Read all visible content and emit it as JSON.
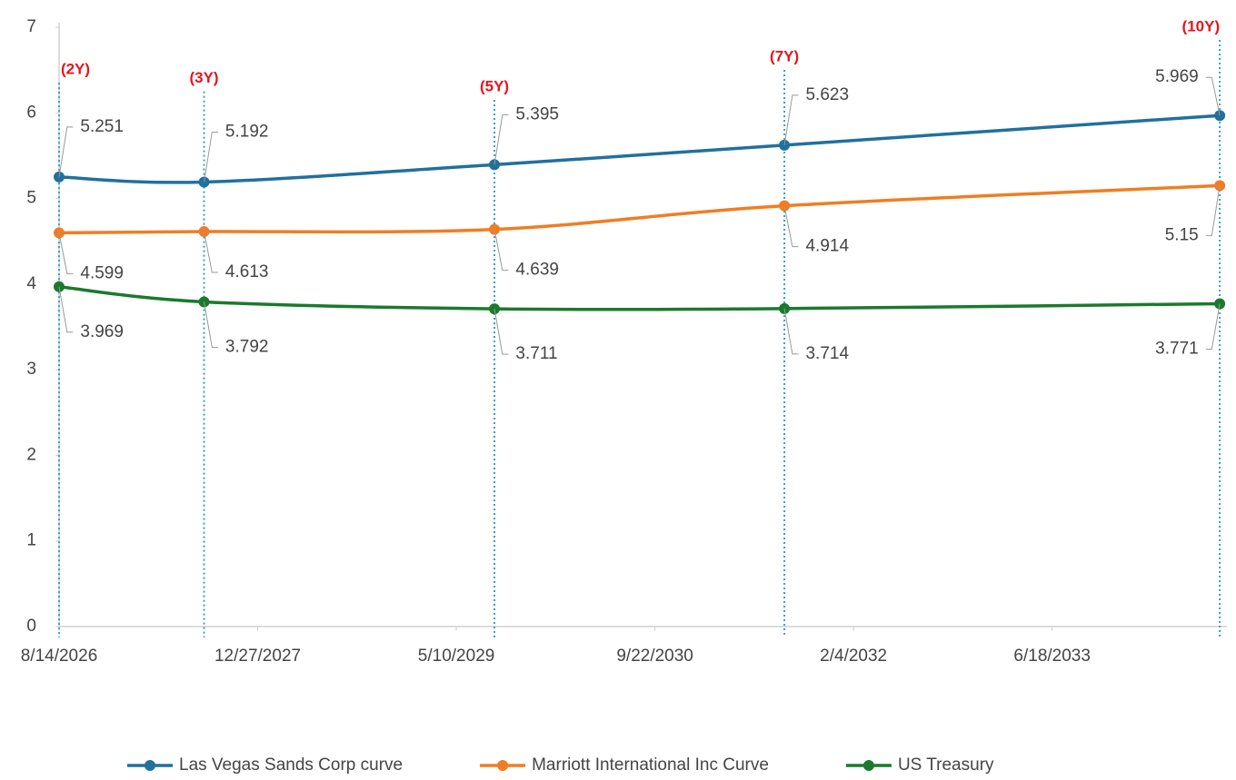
{
  "chart_data": {
    "type": "line",
    "x": [
      "2026-08-14",
      "2027-08-14",
      "2029-08-14",
      "2031-08-14",
      "2034-08-14"
    ],
    "series": [
      {
        "name": "Las Vegas Sands Corp curve",
        "color": "#21709e",
        "values": [
          5.251,
          5.192,
          5.395,
          5.623,
          5.969
        ]
      },
      {
        "name": "Marriott International Inc Curve",
        "color": "#f07d24",
        "values": [
          4.599,
          4.613,
          4.639,
          4.914,
          5.15
        ]
      },
      {
        "name": "US Treasury",
        "color": "#1a7a2c",
        "values": [
          3.969,
          3.792,
          3.711,
          3.714,
          3.771
        ]
      }
    ],
    "xlim": [
      "2026-08-14",
      "2034-09-01"
    ],
    "xticks": [
      {
        "value": "2026-08-14",
        "label": "8/14/2026"
      },
      {
        "value": "2027-12-27",
        "label": "12/27/2027"
      },
      {
        "value": "2029-05-10",
        "label": "5/10/2029"
      },
      {
        "value": "2030-09-22",
        "label": "9/22/2030"
      },
      {
        "value": "2032-02-04",
        "label": "2/4/2032"
      },
      {
        "value": "2033-06-18",
        "label": "6/18/2033"
      }
    ],
    "ylim": [
      0,
      7
    ],
    "yticks": [
      0,
      1,
      2,
      3,
      4,
      5,
      6,
      7
    ],
    "annotations": [
      {
        "text": "(2Y)",
        "x": "2026-08-14",
        "y": 6.5
      },
      {
        "text": "(3Y)",
        "x": "2027-08-14",
        "y": 6.4
      },
      {
        "text": "(5Y)",
        "x": "2029-08-14",
        "y": 6.3
      },
      {
        "text": "(7Y)",
        "x": "2031-08-14",
        "y": 6.65
      },
      {
        "text": "(10Y)",
        "x": "2034-08-14",
        "y": 7.0
      }
    ],
    "legend": "bottom"
  }
}
